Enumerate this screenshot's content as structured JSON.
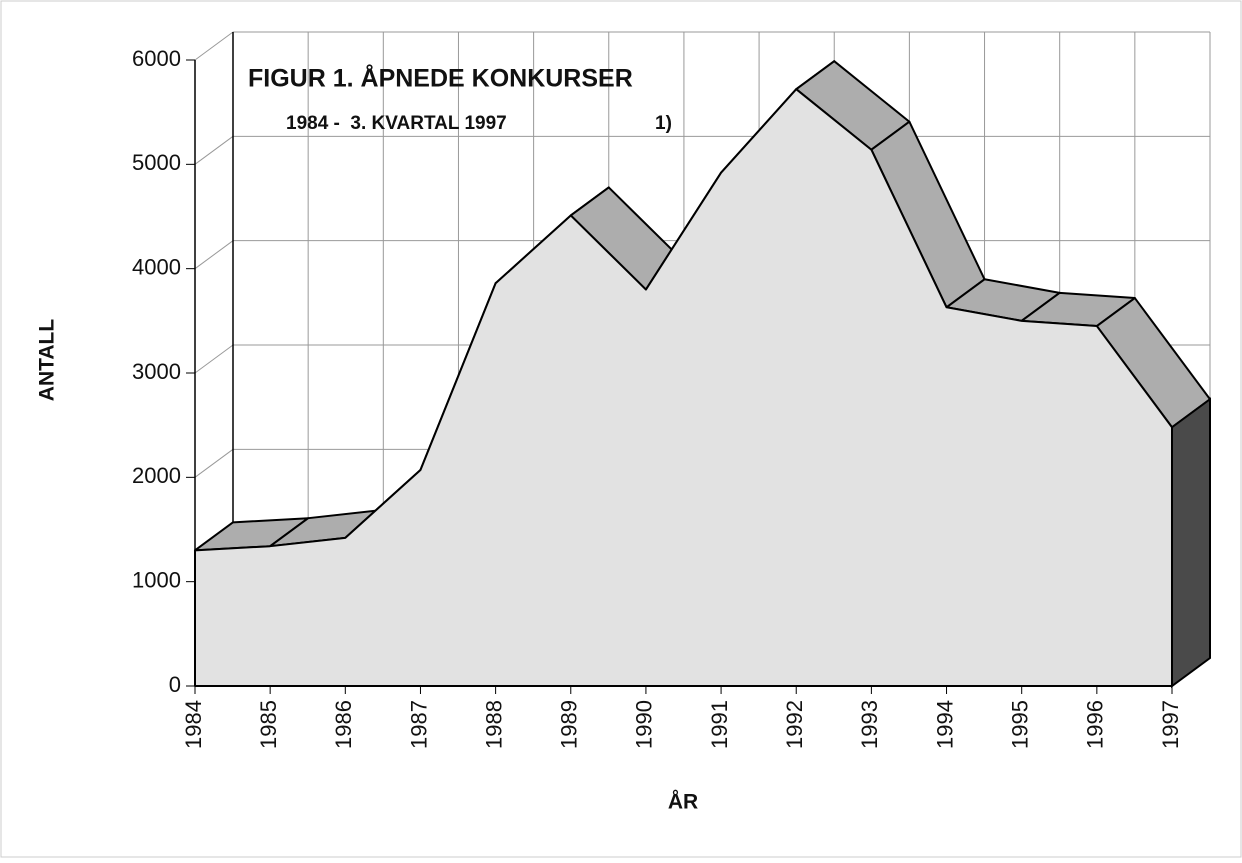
{
  "chart_data": {
    "type": "area3d",
    "title": "FIGUR 1. ÅPNEDE KONKURSER",
    "subtitle": "1984 -  3. KVARTAL 1997",
    "annotation": "1)",
    "ylabel": "ANTALL",
    "xlabel": "ÅR",
    "categories": [
      "1984",
      "1985",
      "1986",
      "1987",
      "1988",
      "1989",
      "1990",
      "1991",
      "1992",
      "1993",
      "1994",
      "1995",
      "1996",
      "1997"
    ],
    "values": [
      1300,
      1340,
      1420,
      2070,
      3860,
      4510,
      3800,
      4920,
      5720,
      5140,
      3630,
      3500,
      3450,
      2480
    ],
    "color": "#e2e2e2",
    "top_color": "#adadad",
    "side_color": "#4a4a4a",
    "ylim": [
      0,
      6000
    ],
    "yticks": [
      0,
      1000,
      2000,
      3000,
      4000,
      5000,
      6000
    ],
    "grid": true
  }
}
